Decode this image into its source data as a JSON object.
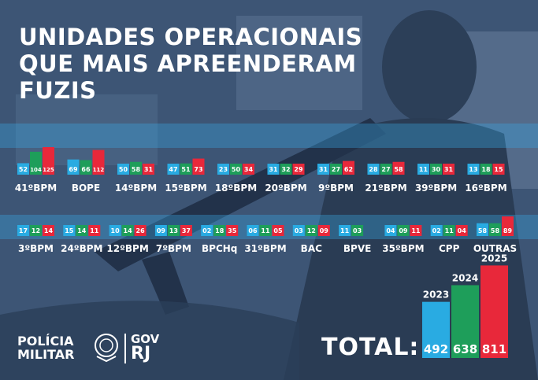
{
  "title": {
    "line1": "UNIDADES OPERACIONAIS",
    "line2": "QUE MAIS APREENDERAM",
    "line3": "FUZIS"
  },
  "colors": {
    "2023": "#29abe2",
    "2024": "#1e9e5a",
    "2025": "#e8283a"
  },
  "chart_data": {
    "type": "bar",
    "series_names": [
      "2023",
      "2024",
      "2025"
    ],
    "units": [
      {
        "name": "41ºBPM",
        "labels": [
          "52",
          "104",
          "125"
        ],
        "values": [
          52,
          104,
          125
        ]
      },
      {
        "name": "BOPE",
        "labels": [
          "69",
          "66",
          "112"
        ],
        "values": [
          69,
          66,
          112
        ]
      },
      {
        "name": "14ºBPM",
        "labels": [
          "50",
          "58",
          "31"
        ],
        "values": [
          50,
          58,
          31
        ]
      },
      {
        "name": "15ºBPM",
        "labels": [
          "47",
          "51",
          "73"
        ],
        "values": [
          47,
          51,
          73
        ]
      },
      {
        "name": "18ºBPM",
        "labels": [
          "23",
          "50",
          "34"
        ],
        "values": [
          23,
          50,
          34
        ]
      },
      {
        "name": "20ºBPM",
        "labels": [
          "31",
          "32",
          "29"
        ],
        "values": [
          31,
          32,
          29
        ]
      },
      {
        "name": "9ºBPM",
        "labels": [
          "31",
          "27",
          "62"
        ],
        "values": [
          31,
          27,
          62
        ]
      },
      {
        "name": "21ºBPM",
        "labels": [
          "28",
          "27",
          "58"
        ],
        "values": [
          28,
          27,
          58
        ]
      },
      {
        "name": "39ºBPM",
        "labels": [
          "11",
          "30",
          "31"
        ],
        "values": [
          11,
          30,
          31
        ]
      },
      {
        "name": "16ºBPM",
        "labels": [
          "13",
          "18",
          "15"
        ],
        "values": [
          13,
          18,
          15
        ]
      },
      {
        "name": "3ºBPM",
        "labels": [
          "17",
          "12",
          "14"
        ],
        "values": [
          17,
          12,
          14
        ]
      },
      {
        "name": "24ºBPM",
        "labels": [
          "15",
          "14",
          "11"
        ],
        "values": [
          15,
          14,
          11
        ]
      },
      {
        "name": "12ºBPM",
        "labels": [
          "10",
          "14",
          "26"
        ],
        "values": [
          10,
          14,
          26
        ]
      },
      {
        "name": "7ºBPM",
        "labels": [
          "09",
          "13",
          "37"
        ],
        "values": [
          9,
          13,
          37
        ]
      },
      {
        "name": "BPCHq",
        "labels": [
          "02",
          "18",
          "35"
        ],
        "values": [
          2,
          18,
          35
        ]
      },
      {
        "name": "31ºBPM",
        "labels": [
          "06",
          "11",
          "05"
        ],
        "values": [
          6,
          11,
          5
        ]
      },
      {
        "name": "BAC",
        "labels": [
          "03",
          "12",
          "09"
        ],
        "values": [
          3,
          12,
          9
        ]
      },
      {
        "name": "BPVE",
        "labels": [
          "11",
          "03",
          ""
        ],
        "values": [
          11,
          3,
          0
        ]
      },
      {
        "name": "35ºBPM",
        "labels": [
          "04",
          "09",
          "11"
        ],
        "values": [
          4,
          9,
          11
        ]
      },
      {
        "name": "CPP",
        "labels": [
          "02",
          "11",
          "04"
        ],
        "values": [
          2,
          11,
          4
        ]
      },
      {
        "name": "OUTRAS",
        "labels": [
          "58",
          "58",
          "89"
        ],
        "values": [
          58,
          58,
          89
        ]
      }
    ],
    "totals": [
      {
        "year": "2023",
        "value": 492
      },
      {
        "year": "2024",
        "value": 638
      },
      {
        "year": "2025",
        "value": 811
      }
    ]
  },
  "total": {
    "label": "TOTAL:"
  },
  "footer": {
    "logo_line1": "POLÍCIA",
    "logo_line2": "MILITAR",
    "gov_line1": "GOV",
    "gov_line2": "RJ"
  }
}
